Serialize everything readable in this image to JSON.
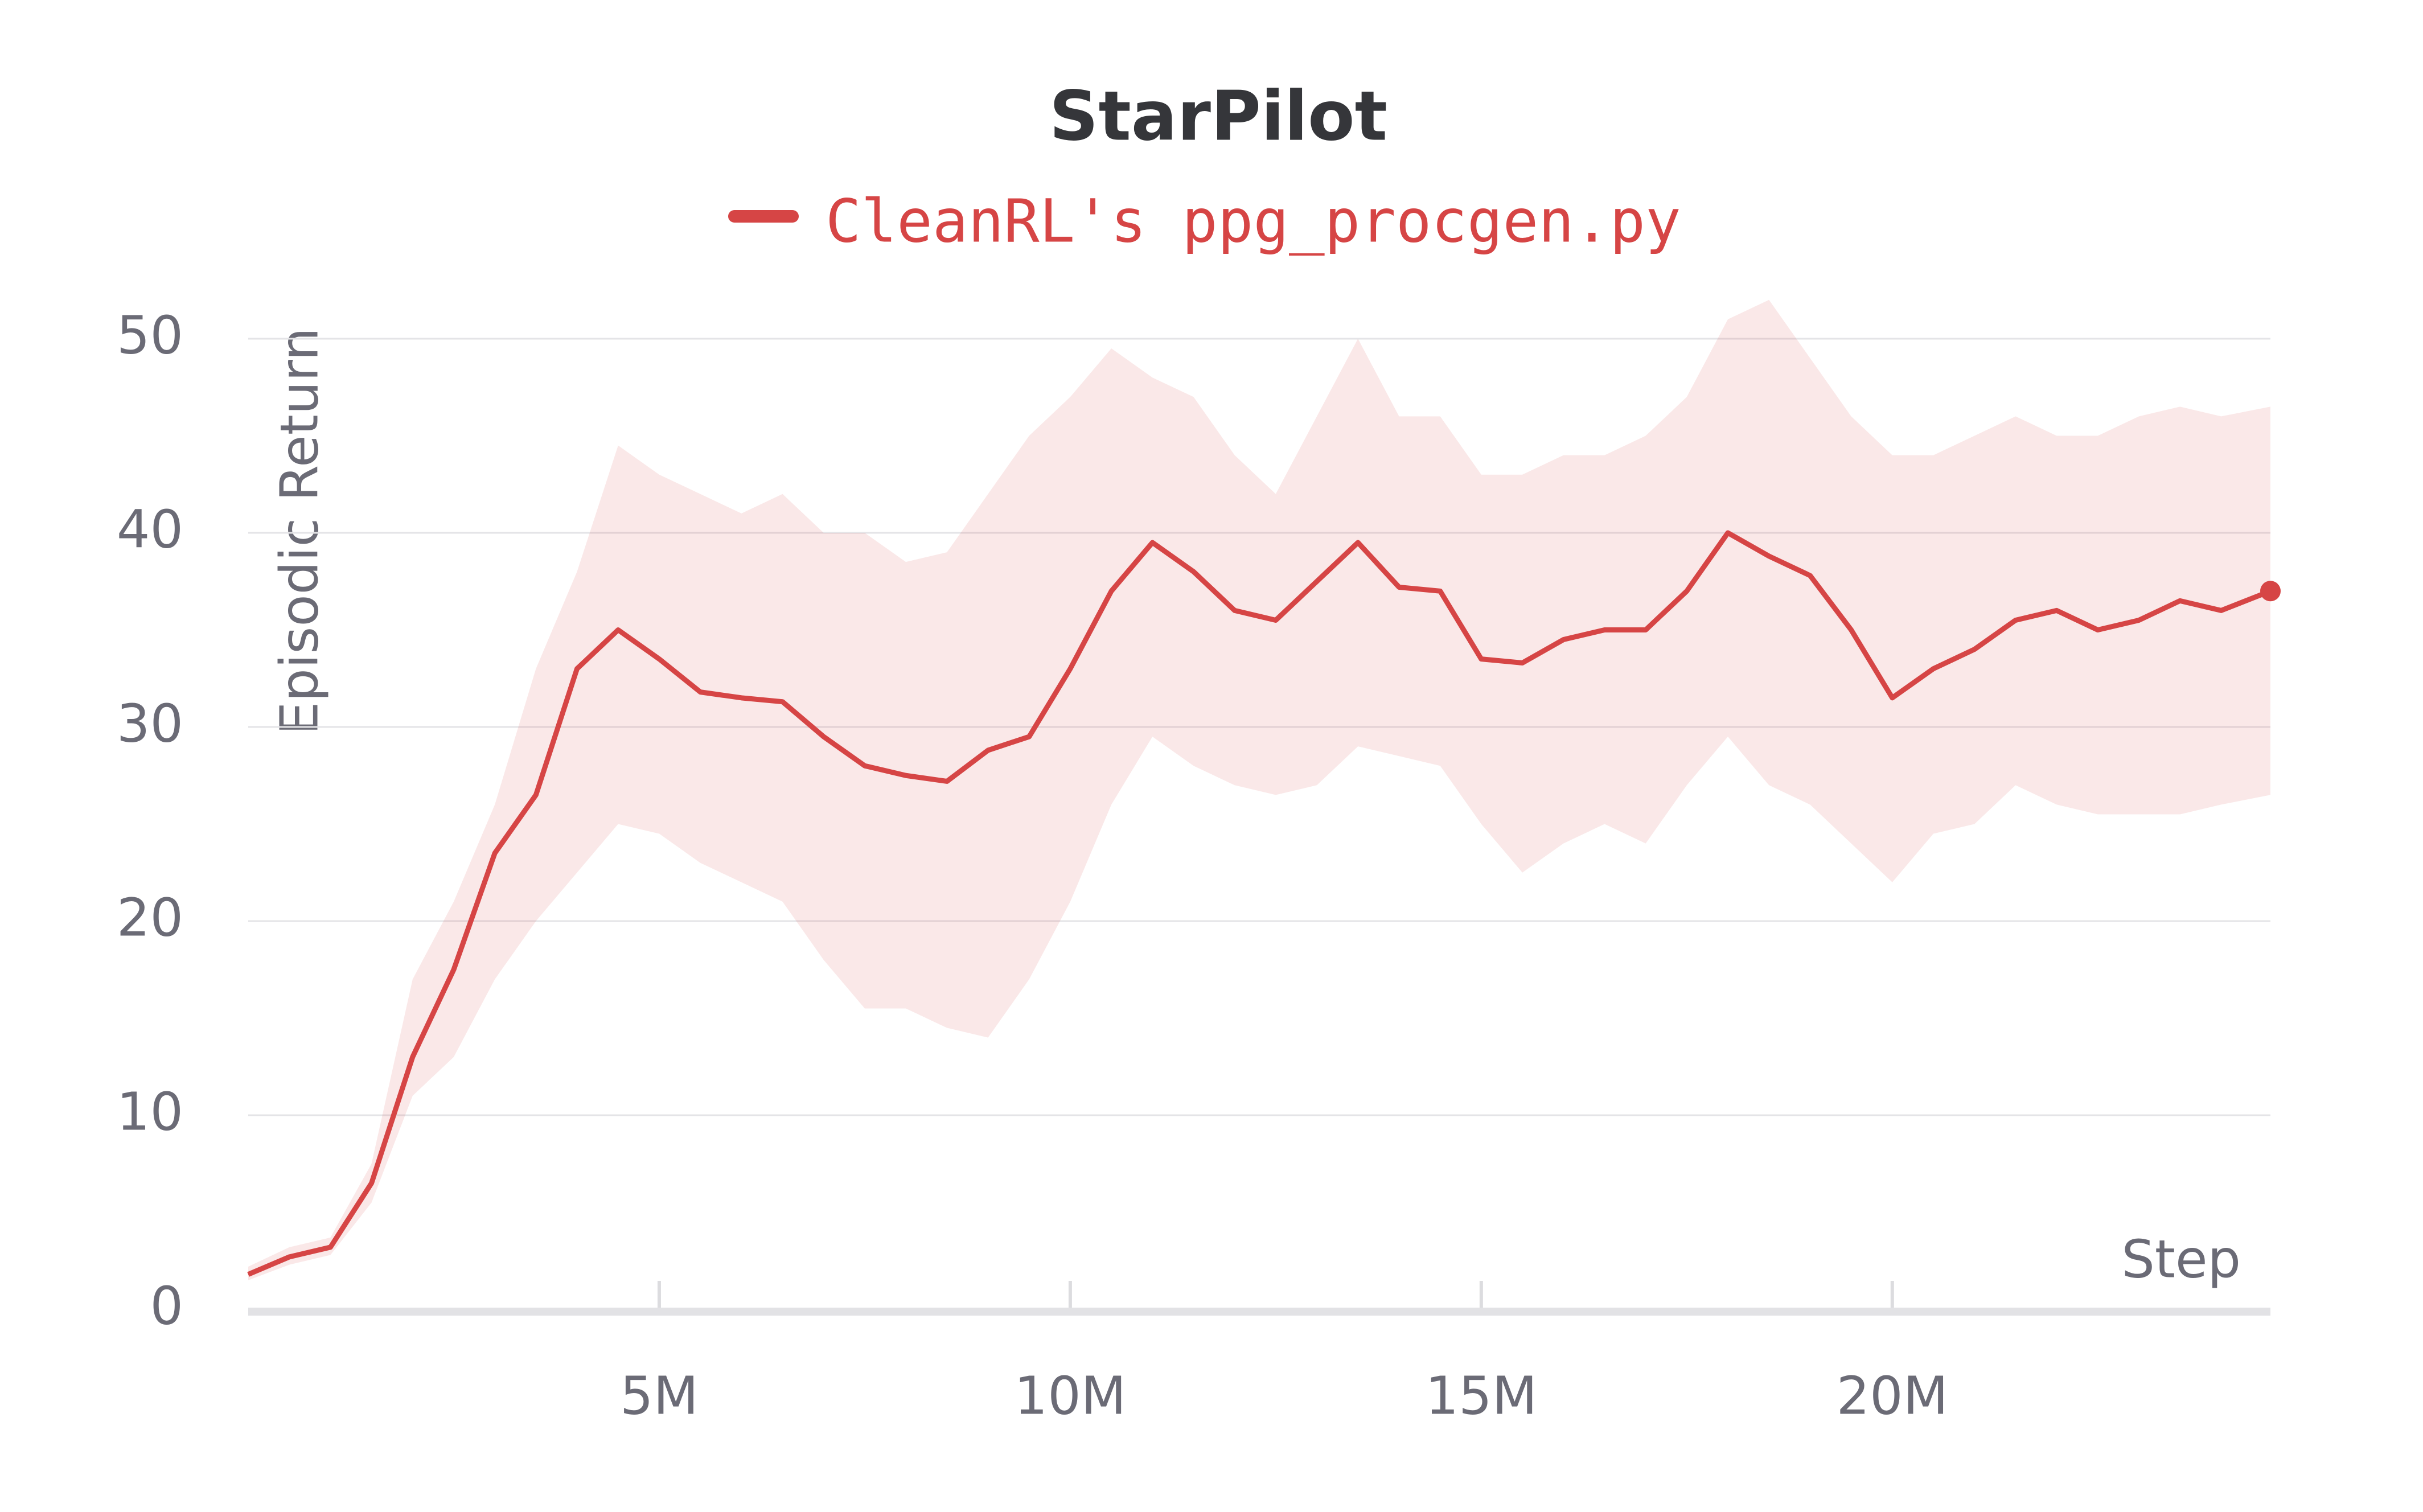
{
  "chart_data": {
    "type": "line",
    "title": "StarPilot",
    "y_label": "Episodic Return",
    "x_label": "Step",
    "x": [
      0,
      500000,
      1000000,
      1500000,
      2000000,
      2500000,
      3000000,
      3500000,
      4000000,
      4500000,
      5000000,
      5500000,
      6000000,
      6500000,
      7000000,
      7500000,
      8000000,
      8500000,
      9000000,
      9500000,
      10000000,
      10500000,
      11000000,
      11500000,
      12000000,
      12500000,
      13000000,
      13500000,
      14000000,
      14500000,
      15000000,
      15500000,
      16000000,
      16500000,
      17000000,
      17500000,
      18000000,
      18500000,
      19000000,
      19500000,
      20000000,
      20500000,
      21000000,
      21500000,
      22000000,
      22500000,
      23000000,
      23500000,
      24000000,
      24600000
    ],
    "series": [
      {
        "name": "CleanRL's ppg_procgen.py",
        "color": "#d64545",
        "values": [
          1.8,
          2.7,
          3.2,
          6.5,
          13,
          17.5,
          23.5,
          26.5,
          33,
          35,
          33.5,
          31.8,
          31.5,
          31.3,
          29.5,
          28,
          27.5,
          27.2,
          28.8,
          29.5,
          33,
          37,
          39.5,
          38,
          36,
          35.5,
          37.5,
          39.5,
          37.2,
          37,
          33.5,
          33.3,
          34.5,
          35,
          35,
          37,
          40,
          38.8,
          37.8,
          35,
          31.5,
          33,
          34,
          35.5,
          36,
          35,
          35.5,
          36.5,
          36,
          37
        ],
        "upper": [
          2.2,
          3.2,
          3.7,
          7.5,
          17,
          21,
          26,
          33,
          38,
          44.5,
          43,
          42,
          41,
          42,
          40,
          40,
          38.5,
          39,
          42,
          45,
          47,
          49.5,
          48,
          47,
          44,
          42,
          46,
          50,
          46,
          46,
          43,
          43,
          44,
          44,
          45,
          47,
          51,
          52,
          49,
          46,
          44,
          44,
          45,
          46,
          45,
          45,
          46,
          46.5,
          46,
          46.5
        ],
        "lower": [
          1.5,
          2.3,
          2.8,
          5.5,
          11,
          13,
          17,
          20,
          22.5,
          25,
          24.5,
          23,
          22,
          21,
          18,
          15.5,
          15.5,
          14.5,
          14,
          17,
          21,
          26,
          29.5,
          28,
          27,
          26.5,
          27,
          29,
          28.5,
          28,
          25,
          22.5,
          24,
          25,
          24,
          27,
          29.5,
          27,
          26,
          24,
          22,
          24.5,
          25,
          27,
          26,
          25.5,
          25.5,
          25.5,
          26,
          26.5
        ]
      }
    ],
    "xlim": [
      0,
      24600000
    ],
    "ylim": [
      0,
      50
    ],
    "xticks": [
      {
        "value": 5000000,
        "label": "5M"
      },
      {
        "value": 10000000,
        "label": "10M"
      },
      {
        "value": 15000000,
        "label": "15M"
      },
      {
        "value": 20000000,
        "label": "20M"
      }
    ],
    "yticks": [
      0,
      10,
      20,
      30,
      40,
      50
    ],
    "grid": true
  }
}
